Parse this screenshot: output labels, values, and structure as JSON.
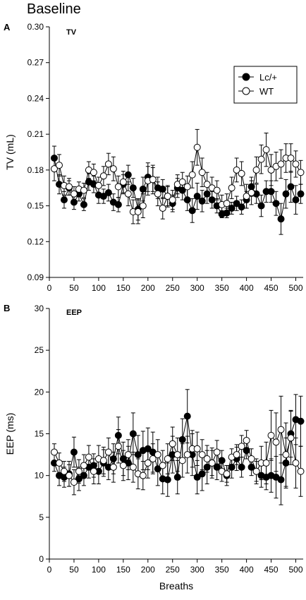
{
  "figure_title": "Baseline",
  "chart_data": [
    {
      "type": "scatter",
      "panel_letter": "A",
      "panel_tag": "TV",
      "ylabel": "TV (mL)",
      "xlabel": "",
      "xlim": [
        0,
        515
      ],
      "ylim": [
        0.09,
        0.3
      ],
      "xticks": [
        0,
        50,
        100,
        150,
        200,
        250,
        300,
        350,
        400,
        450,
        500
      ],
      "yticks": [
        "0.09",
        "0.12",
        "0.15",
        "0.18",
        "0.21",
        "0.24",
        "0.27",
        "0.30"
      ],
      "legend": {
        "placement": "top-right"
      },
      "series": [
        {
          "name": "Lc/+",
          "marker": "filled",
          "color": "#000000",
          "x": [
            10,
            20,
            30,
            40,
            50,
            60,
            70,
            80,
            90,
            100,
            110,
            120,
            130,
            140,
            150,
            160,
            170,
            180,
            190,
            200,
            210,
            220,
            230,
            240,
            250,
            260,
            270,
            280,
            290,
            300,
            310,
            320,
            330,
            340,
            350,
            360,
            370,
            380,
            390,
            400,
            410,
            420,
            430,
            440,
            450,
            460,
            470,
            480,
            490,
            500,
            510
          ],
          "y": [
            0.19,
            0.168,
            0.155,
            0.165,
            0.153,
            0.16,
            0.151,
            0.17,
            0.168,
            0.159,
            0.158,
            0.161,
            0.153,
            0.151,
            0.168,
            0.176,
            0.165,
            0.147,
            0.164,
            0.174,
            0.172,
            0.165,
            0.164,
            0.158,
            0.152,
            0.165,
            0.163,
            0.155,
            0.146,
            0.158,
            0.154,
            0.16,
            0.155,
            0.15,
            0.143,
            0.144,
            0.148,
            0.152,
            0.149,
            0.155,
            0.166,
            0.16,
            0.15,
            0.162,
            0.162,
            0.152,
            0.139,
            0.16,
            0.166,
            0.155,
            0.16
          ],
          "err": [
            0.01,
            0.008,
            0.007,
            0.006,
            0.006,
            0.006,
            0.005,
            0.007,
            0.007,
            0.007,
            0.006,
            0.007,
            0.007,
            0.006,
            0.008,
            0.008,
            0.008,
            0.009,
            0.01,
            0.012,
            0.01,
            0.009,
            0.008,
            0.008,
            0.007,
            0.008,
            0.008,
            0.009,
            0.01,
            0.011,
            0.009,
            0.008,
            0.007,
            0.006,
            0.003,
            0.004,
            0.005,
            0.006,
            0.006,
            0.007,
            0.008,
            0.008,
            0.009,
            0.009,
            0.009,
            0.01,
            0.013,
            0.012,
            0.013,
            0.012,
            0.008
          ]
        },
        {
          "name": "WT",
          "marker": "open",
          "color": "#ffffff",
          "x": [
            10,
            20,
            30,
            40,
            50,
            60,
            70,
            80,
            90,
            100,
            110,
            120,
            130,
            140,
            150,
            160,
            170,
            180,
            190,
            200,
            210,
            220,
            230,
            240,
            250,
            260,
            270,
            280,
            290,
            300,
            310,
            320,
            330,
            340,
            350,
            360,
            370,
            380,
            390,
            400,
            410,
            420,
            430,
            440,
            450,
            460,
            470,
            480,
            490,
            500,
            510
          ],
          "y": [
            0.181,
            0.184,
            0.167,
            0.166,
            0.16,
            0.164,
            0.163,
            0.18,
            0.178,
            0.167,
            0.175,
            0.185,
            0.181,
            0.166,
            0.17,
            0.16,
            0.145,
            0.145,
            0.15,
            0.171,
            0.172,
            0.16,
            0.148,
            0.158,
            0.155,
            0.168,
            0.17,
            0.166,
            0.176,
            0.199,
            0.178,
            0.168,
            0.165,
            0.163,
            0.151,
            0.152,
            0.165,
            0.18,
            0.177,
            0.158,
            0.161,
            0.18,
            0.189,
            0.197,
            0.18,
            0.183,
            0.185,
            0.19,
            0.19,
            0.185,
            0.178
          ],
          "err": [
            0.01,
            0.009,
            0.008,
            0.007,
            0.006,
            0.006,
            0.006,
            0.007,
            0.007,
            0.007,
            0.008,
            0.009,
            0.01,
            0.009,
            0.009,
            0.01,
            0.01,
            0.01,
            0.01,
            0.012,
            0.012,
            0.01,
            0.009,
            0.009,
            0.008,
            0.008,
            0.008,
            0.009,
            0.011,
            0.015,
            0.012,
            0.01,
            0.009,
            0.008,
            0.008,
            0.008,
            0.009,
            0.01,
            0.01,
            0.01,
            0.01,
            0.011,
            0.012,
            0.014,
            0.013,
            0.012,
            0.012,
            0.012,
            0.012,
            0.011,
            0.01
          ]
        }
      ]
    },
    {
      "type": "scatter",
      "panel_letter": "B",
      "panel_tag": "EEP",
      "ylabel": "EEP (ms)",
      "xlabel": "Breaths",
      "xlim": [
        0,
        515
      ],
      "ylim": [
        0,
        30
      ],
      "xticks": [
        0,
        50,
        100,
        150,
        200,
        250,
        300,
        350,
        400,
        450,
        500
      ],
      "yticks": [
        "0",
        "5",
        "10",
        "15",
        "20",
        "25",
        "30"
      ],
      "series": [
        {
          "name": "Lc/+",
          "marker": "filled",
          "color": "#000000",
          "x": [
            10,
            20,
            30,
            40,
            50,
            60,
            70,
            80,
            90,
            100,
            110,
            120,
            130,
            140,
            150,
            160,
            170,
            180,
            190,
            200,
            210,
            220,
            230,
            240,
            250,
            260,
            270,
            280,
            290,
            300,
            310,
            320,
            330,
            340,
            350,
            360,
            370,
            380,
            390,
            400,
            410,
            420,
            430,
            440,
            450,
            460,
            470,
            480,
            490,
            500,
            510
          ],
          "y": [
            11.5,
            10.0,
            9.8,
            10.2,
            12.8,
            9.6,
            10.0,
            11.0,
            11.2,
            10.5,
            11.5,
            11.0,
            12.0,
            14.8,
            12.0,
            11.5,
            15.0,
            12.5,
            13.0,
            13.2,
            12.8,
            10.8,
            9.6,
            9.5,
            12.5,
            9.8,
            14.3,
            17.1,
            12.5,
            9.8,
            10.2,
            11.0,
            11.5,
            11.0,
            11.8,
            10.0,
            11.0,
            12.0,
            11.0,
            13.0,
            11.0,
            10.5,
            10.0,
            9.8,
            10.0,
            9.8,
            9.5,
            11.5,
            15.0,
            16.7,
            16.5
          ],
          "err": [
            1.0,
            1.2,
            1.2,
            1.5,
            1.8,
            1.4,
            1.2,
            1.3,
            1.4,
            1.5,
            1.6,
            1.5,
            1.8,
            2.2,
            2.0,
            2.0,
            2.5,
            2.3,
            2.3,
            2.5,
            2.4,
            2.0,
            1.8,
            2.0,
            2.2,
            2.0,
            2.5,
            3.2,
            2.5,
            2.0,
            2.0,
            2.0,
            1.8,
            1.5,
            1.2,
            1.2,
            1.3,
            1.4,
            1.2,
            1.0,
            1.0,
            1.2,
            1.4,
            1.5,
            2.0,
            2.5,
            3.0,
            3.0,
            2.8,
            3.0,
            3.0
          ]
        },
        {
          "name": "WT",
          "marker": "open",
          "color": "#ffffff",
          "x": [
            10,
            20,
            30,
            40,
            50,
            60,
            70,
            80,
            90,
            100,
            110,
            120,
            130,
            140,
            150,
            160,
            170,
            180,
            190,
            200,
            210,
            220,
            230,
            240,
            250,
            260,
            270,
            280,
            290,
            300,
            310,
            320,
            330,
            340,
            350,
            360,
            370,
            380,
            390,
            400,
            410,
            420,
            430,
            440,
            450,
            460,
            470,
            480,
            490,
            500,
            510
          ],
          "y": [
            12.8,
            11.5,
            10.5,
            10.0,
            9.2,
            10.5,
            11.2,
            12.2,
            10.5,
            12.0,
            11.8,
            12.8,
            11.0,
            13.5,
            11.2,
            12.5,
            11.0,
            10.2,
            10.0,
            11.5,
            12.0,
            12.5,
            11.2,
            12.0,
            13.8,
            12.5,
            11.8,
            12.5,
            13.2,
            13.2,
            12.5,
            12.0,
            11.5,
            12.8,
            10.5,
            10.2,
            12.2,
            12.5,
            13.5,
            14.2,
            12.0,
            10.5,
            11.5,
            11.5,
            14.8,
            14.0,
            15.5,
            12.5,
            14.5,
            11.5,
            10.5
          ],
          "err": [
            1.0,
            1.2,
            1.2,
            1.3,
            1.5,
            1.4,
            1.3,
            1.4,
            1.5,
            1.6,
            1.6,
            1.7,
            1.8,
            2.0,
            1.8,
            1.8,
            1.8,
            1.8,
            1.7,
            1.8,
            1.8,
            1.8,
            1.8,
            1.8,
            2.0,
            2.0,
            2.0,
            2.2,
            2.2,
            2.0,
            1.8,
            1.6,
            1.5,
            1.4,
            1.2,
            1.0,
            1.0,
            1.2,
            1.3,
            1.2,
            1.2,
            1.5,
            2.0,
            2.5,
            3.0,
            3.5,
            4.0,
            3.8,
            3.2,
            3.0,
            3.0
          ]
        }
      ]
    }
  ]
}
